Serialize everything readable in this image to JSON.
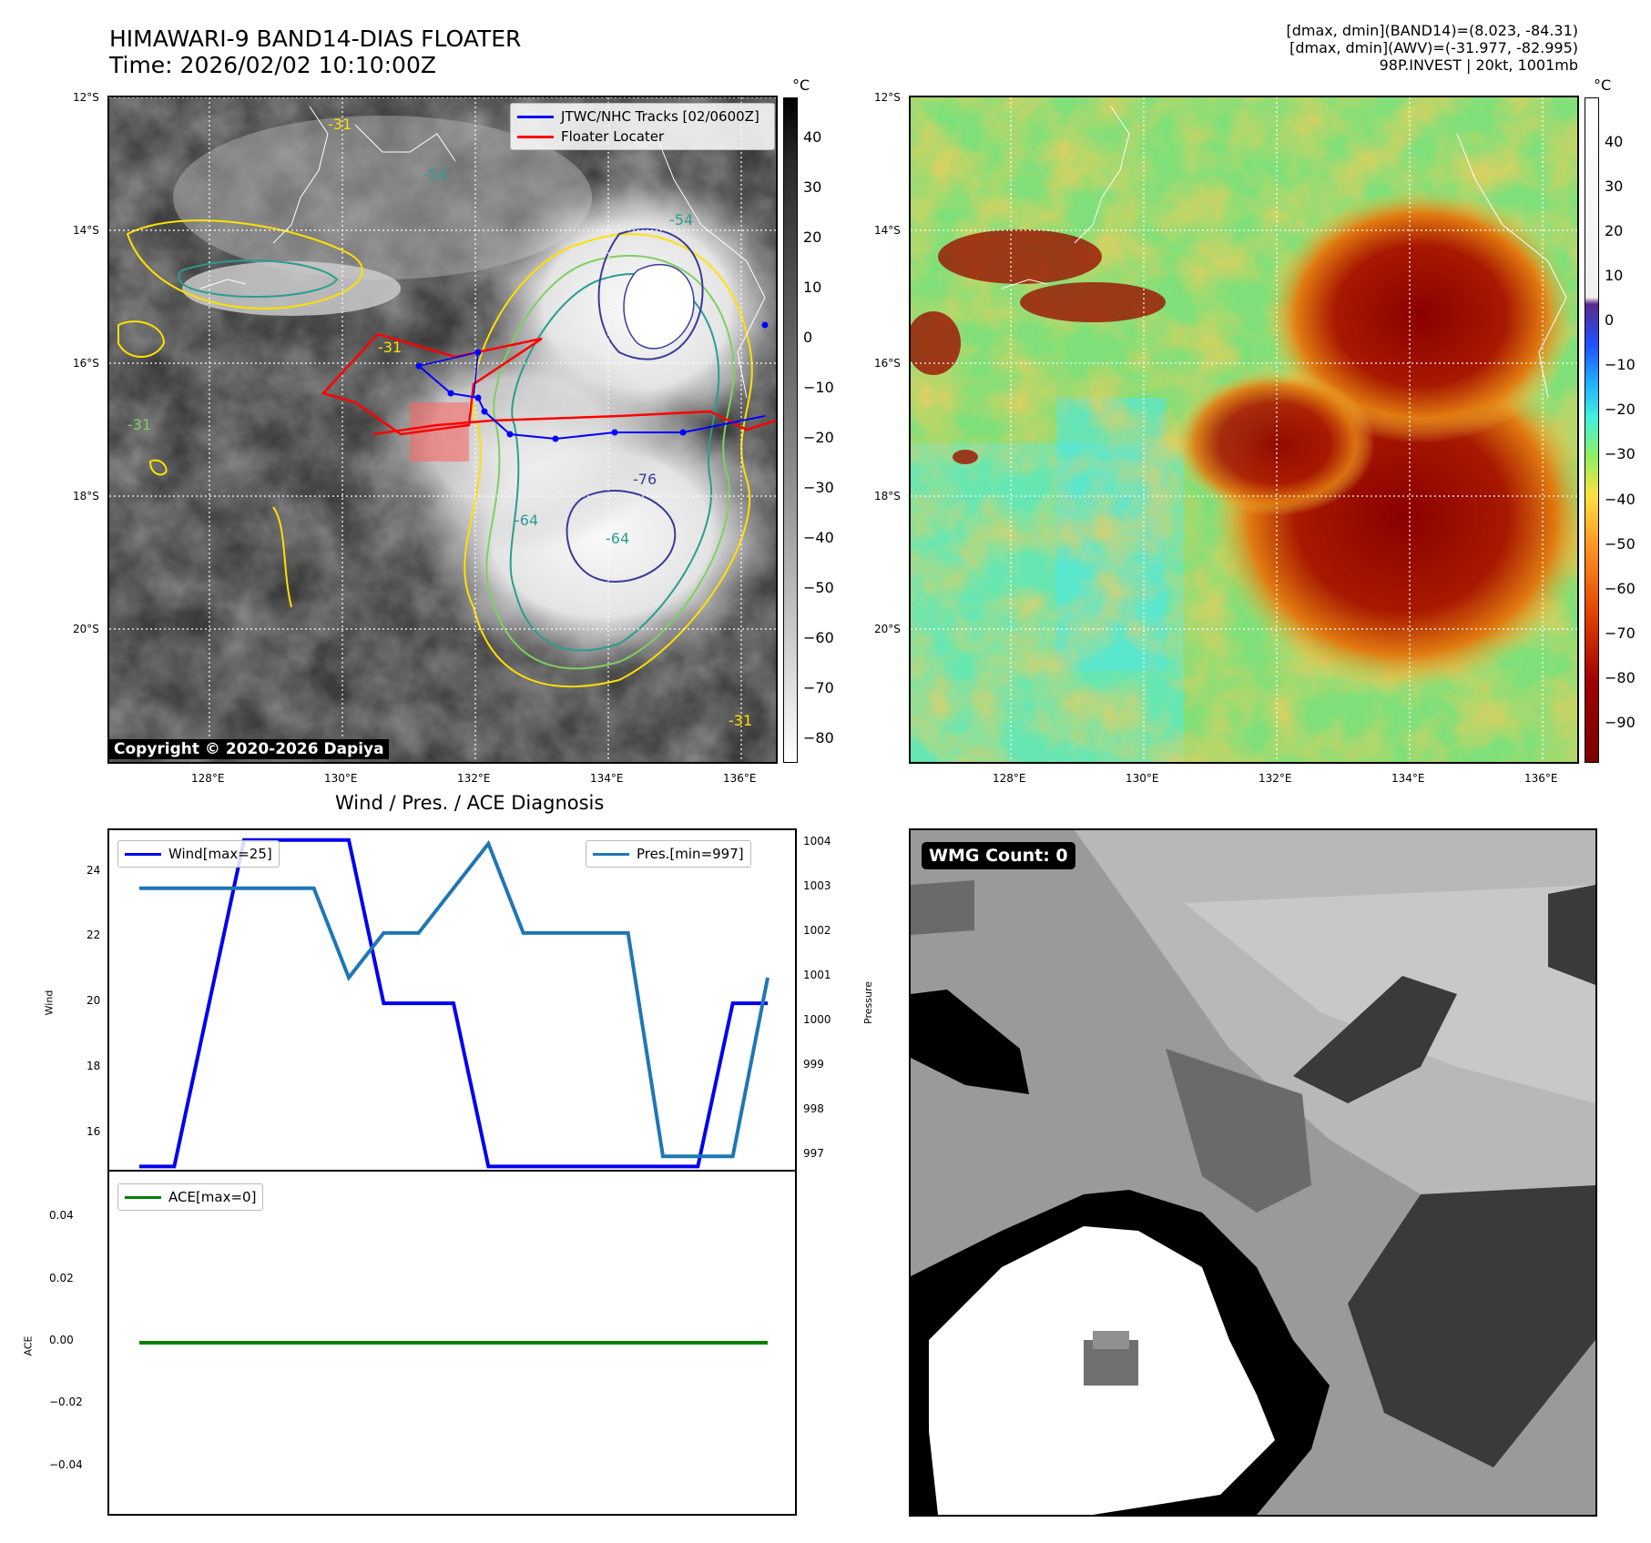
{
  "header": {
    "title_line1": "HIMAWARI-9 BAND14-DIAS FLOATER",
    "title_line2": "Time: 2026/02/02 10:10:00Z",
    "info_line1": "[dmax, dmin](BAND14)=(8.023, -84.31)",
    "info_line2": "[dmax, dmin](AWV)=(-31.977, -82.995)",
    "info_line3": "98P.INVEST | 20kt, 1001mb"
  },
  "map_axes": {
    "lat_labels": [
      "12°S",
      "14°S",
      "16°S",
      "18°S",
      "20°S"
    ],
    "lon_labels": [
      "128°E",
      "130°E",
      "132°E",
      "134°E",
      "136°E"
    ]
  },
  "left_colorbar": {
    "unit": "°C",
    "ticks": [
      "40",
      "30",
      "20",
      "10",
      "0",
      "−10",
      "−20",
      "−30",
      "−40",
      "−50",
      "−60",
      "−70",
      "−80"
    ],
    "tick_values": [
      40,
      30,
      20,
      10,
      0,
      -10,
      -20,
      -30,
      -40,
      -50,
      -60,
      -70,
      -80
    ],
    "range": [
      -85,
      48
    ]
  },
  "right_colorbar": {
    "unit": "°C",
    "ticks": [
      "40",
      "30",
      "20",
      "10",
      "0",
      "−10",
      "−20",
      "−30",
      "−40",
      "−50",
      "−60",
      "−70",
      "−80",
      "−90"
    ],
    "tick_values": [
      40,
      30,
      20,
      10,
      0,
      -10,
      -20,
      -30,
      -40,
      -50,
      -60,
      -70,
      -80,
      -90
    ],
    "range": [
      -99,
      50
    ]
  },
  "map_legend": {
    "tracks": "JTWC/NHC Tracks [02/0600Z]",
    "floater": "Floater Locater",
    "tracks_color": "#0000ff",
    "floater_color": "#ff0000"
  },
  "contour_labels": [
    "-31",
    "-31",
    "-31",
    "-54",
    "-54",
    "-64",
    "-64",
    "-76",
    "-31"
  ],
  "copyright": "Copyright © 2020-2026 Dapiya",
  "wmg_label": "WMG Count: 0",
  "chart_data": [
    {
      "type": "line",
      "title": "Wind / Pres. / ACE Diagnosis",
      "ylabel": "Wind",
      "ylabel_right": "Pressure",
      "ylim": [
        14.9,
        25.3
      ],
      "ylim_right": [
        996.7,
        1004.3
      ],
      "y_ticks": [
        16,
        18,
        20,
        22,
        24
      ],
      "y_ticks_right": [
        997,
        998,
        999,
        1000,
        1001,
        1002,
        1003,
        1004
      ],
      "x": [
        0,
        1,
        2,
        3,
        4,
        5,
        6,
        7,
        8,
        9,
        10,
        11,
        12,
        13,
        14,
        15,
        16,
        17,
        18
      ],
      "series": [
        {
          "name": "Wind[max=25]",
          "color": "#0000ee",
          "axis": "left",
          "values": [
            15,
            15,
            20,
            25,
            25,
            25,
            25,
            20,
            20,
            20,
            15,
            15,
            15,
            15,
            15,
            15,
            15,
            20,
            20
          ]
        },
        {
          "name": "Pres.[min=997]",
          "color": "#1f77b4",
          "axis": "right",
          "values": [
            1003,
            1003,
            1003,
            1003,
            1003,
            1003,
            1001,
            1002,
            1002,
            1003,
            1004,
            1002,
            1002,
            1002,
            1002,
            997,
            997,
            997,
            1001
          ]
        }
      ]
    },
    {
      "type": "line",
      "ylabel": "ACE",
      "ylim": [
        -0.055,
        0.055
      ],
      "y_ticks": [
        -0.04,
        -0.02,
        0.0,
        0.02,
        0.04
      ],
      "y_tick_labels": [
        "−0.04",
        "−0.02",
        "0.00",
        "0.02",
        "0.04"
      ],
      "x": [
        0,
        1,
        2,
        3,
        4,
        5,
        6,
        7,
        8,
        9,
        10,
        11,
        12,
        13,
        14,
        15,
        16,
        17,
        18
      ],
      "series": [
        {
          "name": "ACE[max=0]",
          "color": "#008000",
          "axis": "left",
          "values": [
            0,
            0,
            0,
            0,
            0,
            0,
            0,
            0,
            0,
            0,
            0,
            0,
            0,
            0,
            0,
            0,
            0,
            0,
            0
          ]
        }
      ]
    }
  ]
}
